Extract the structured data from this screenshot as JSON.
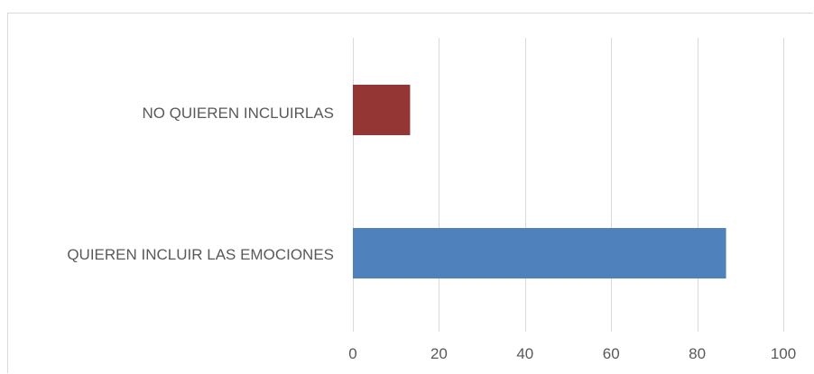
{
  "chart_data": {
    "type": "bar",
    "orientation": "horizontal",
    "categories": [
      "NO QUIEREN INCLUIRLAS",
      "QUIEREN INCLUIR LAS EMOCIONES"
    ],
    "values": [
      13.3,
      86.7
    ],
    "bar_colors": [
      "#943634",
      "#4f81bd"
    ],
    "xlim": [
      0,
      100
    ],
    "x_ticks": [
      0,
      20,
      40,
      60,
      80,
      100
    ],
    "grid": true,
    "gridline_color": "#d9d9d9",
    "legend": "none",
    "title": "",
    "xlabel": "",
    "ylabel": ""
  }
}
